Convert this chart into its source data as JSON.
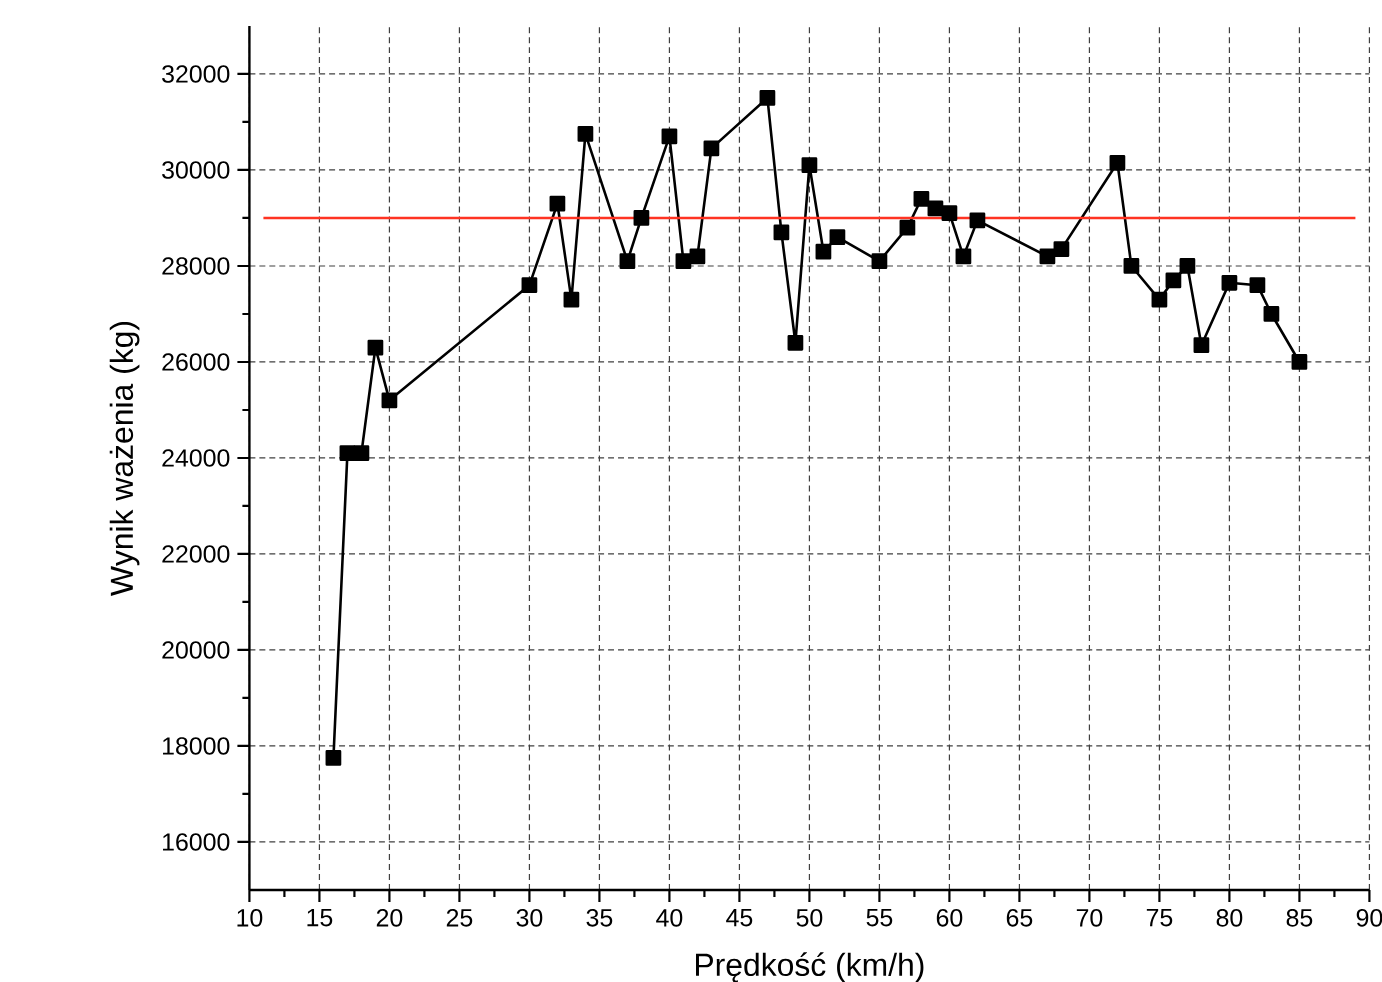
{
  "chart_data": {
    "type": "line",
    "xlabel": "Prędkość (km/h)",
    "ylabel": "Wynik ważenia (kg)",
    "x": [
      16,
      17,
      18,
      19,
      20,
      30,
      32,
      33,
      34,
      37,
      38,
      40,
      41,
      42,
      43,
      47,
      48,
      49,
      50,
      51,
      52,
      55,
      57,
      58,
      59,
      60,
      61,
      62,
      67,
      68,
      72,
      73,
      75,
      76,
      77,
      78,
      80,
      82,
      83,
      85
    ],
    "series": [
      {
        "color": "#000000",
        "values": [
          17750,
          24100,
          24100,
          26300,
          25200,
          27600,
          29300,
          27300,
          30750,
          28100,
          29000,
          30700,
          28100,
          28200,
          30450,
          31500,
          28700,
          26400,
          30100,
          28300,
          28600,
          28100,
          28800,
          29400,
          29200,
          29100,
          28200,
          28950,
          28200,
          28350,
          30150,
          28000,
          27300,
          27700,
          28000,
          26350,
          27650,
          27600,
          27000,
          26000
        ]
      }
    ],
    "xlim": [
      10,
      90
    ],
    "ylim": [
      15000,
      33000
    ],
    "xticks": [
      10,
      15,
      20,
      25,
      30,
      35,
      40,
      45,
      50,
      55,
      60,
      65,
      70,
      75,
      80,
      85,
      90
    ],
    "yticks": [
      16000,
      18000,
      20000,
      22000,
      24000,
      26000,
      28000,
      30000,
      32000
    ],
    "grid": true,
    "marker": "square",
    "line_style": "solid",
    "ref_lines": [
      {
        "axis": "y",
        "value": 29000,
        "color": "#ff3322"
      }
    ]
  }
}
